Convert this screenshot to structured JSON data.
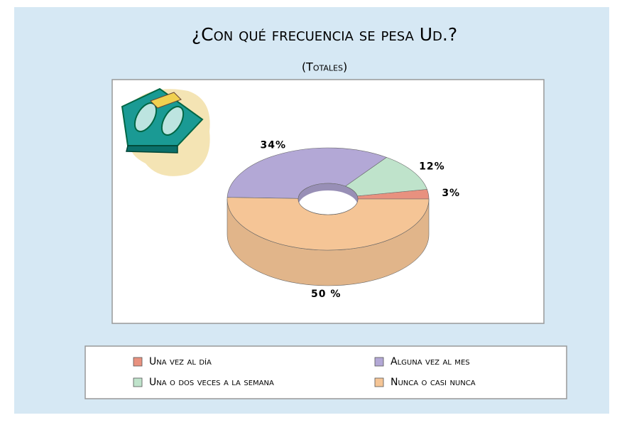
{
  "chart_data": {
    "type": "donut3d",
    "title": "¿Con qué frecuencia se pesa Ud.?",
    "subtitle": "(Totales)",
    "categories": [
      "Una vez al día",
      "Una o dos veces a la semana",
      "Alguna vez al mes",
      "Nunca o casi nunca"
    ],
    "values": [
      3,
      12,
      34,
      50
    ],
    "value_labels": [
      "3%",
      "12%",
      "34%",
      "50 %"
    ],
    "colors": [
      "#e8917f",
      "#bfe3cb",
      "#b3a8d6",
      "#f5c596"
    ]
  }
}
